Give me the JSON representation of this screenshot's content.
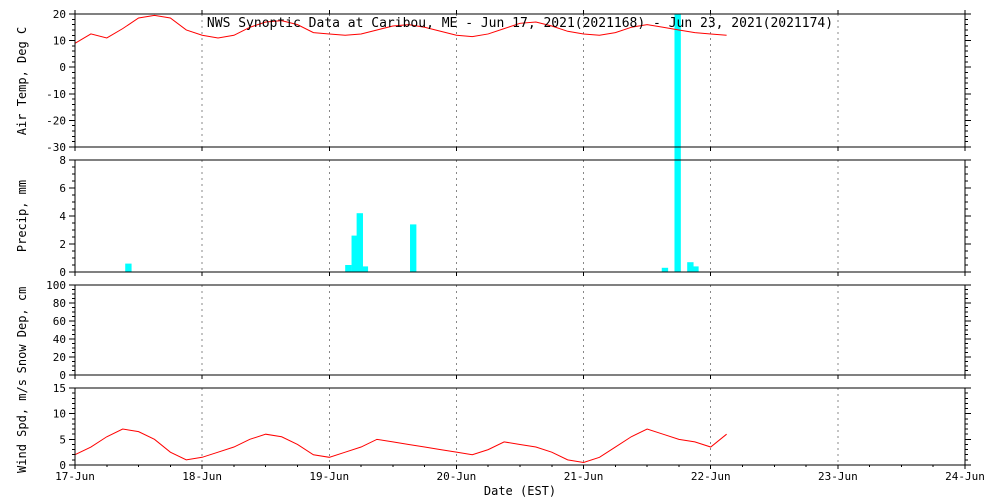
{
  "title": "NWS Synoptic Data at Caribou, ME - Jun 17, 2021(2021168) - Jun 23, 2021(2021174)",
  "x_axis": {
    "label": "Date (EST)",
    "tick_labels": [
      "17-Jun",
      "18-Jun",
      "19-Jun",
      "20-Jun",
      "21-Jun",
      "22-Jun",
      "23-Jun",
      "24-Jun"
    ],
    "range_days": [
      0,
      7
    ]
  },
  "colors": {
    "background": "#ffffff",
    "frame": "#000000",
    "grid": "#888888",
    "line": "#ff0000",
    "bar": "#00ffff"
  },
  "chart_data": [
    {
      "type": "line",
      "ylabel": "Air Temp, Deg C",
      "ylim": [
        -30,
        20
      ],
      "yticks": [
        20,
        10,
        0,
        -10,
        -20,
        -30
      ],
      "minor_step": 2,
      "grid": "vertical-dashed",
      "series": [
        {
          "name": "air-temp",
          "x": [
            0,
            0.125,
            0.25,
            0.375,
            0.5,
            0.625,
            0.75,
            0.875,
            1,
            1.125,
            1.25,
            1.375,
            1.5,
            1.625,
            1.75,
            1.875,
            2,
            2.125,
            2.25,
            2.375,
            2.5,
            2.625,
            2.75,
            2.875,
            3,
            3.125,
            3.25,
            3.375,
            3.5,
            3.625,
            3.75,
            3.875,
            4,
            4.125,
            4.25,
            4.375,
            4.5,
            4.625,
            4.75,
            4.875,
            5,
            5.125
          ],
          "values": [
            9,
            12.5,
            11,
            14.5,
            18.5,
            19.5,
            18.5,
            14,
            12,
            11,
            12,
            15,
            17,
            17.5,
            16,
            13,
            12.5,
            12,
            12.5,
            14,
            15.5,
            16,
            15,
            13.5,
            12,
            11.5,
            12.5,
            14.5,
            16.5,
            17,
            15.5,
            13.5,
            12.5,
            12,
            13,
            15,
            16,
            15,
            14,
            13,
            12.5,
            12
          ]
        }
      ]
    },
    {
      "type": "bar",
      "ylabel": "Precip, mm",
      "ylim": [
        0,
        8
      ],
      "yticks": [
        8,
        6,
        4,
        2,
        0
      ],
      "minor_step": 0.5,
      "grid": "vertical-dashed",
      "bar_width_days": 0.05,
      "bars": {
        "x": [
          0.42,
          2.15,
          2.2,
          2.24,
          2.28,
          2.66,
          4.64,
          4.74,
          4.84,
          4.88
        ],
        "values": [
          0.6,
          0.5,
          2.6,
          4.2,
          0.4,
          3.4,
          0.3,
          18.4,
          0.7,
          0.4
        ]
      }
    },
    {
      "type": "line",
      "ylabel": "Snow Dep, cm",
      "ylim": [
        0,
        100
      ],
      "yticks": [
        100,
        80,
        60,
        40,
        20,
        0
      ],
      "minor_step": 5,
      "grid": "vertical-dashed",
      "series": []
    },
    {
      "type": "line",
      "ylabel": "Wind Spd, m/s",
      "ylim": [
        0,
        15
      ],
      "yticks": [
        15,
        10,
        5,
        0
      ],
      "minor_step": 1,
      "grid": "vertical-dashed",
      "series": [
        {
          "name": "wind-speed",
          "x": [
            0,
            0.125,
            0.25,
            0.375,
            0.5,
            0.625,
            0.75,
            0.875,
            1,
            1.125,
            1.25,
            1.375,
            1.5,
            1.625,
            1.75,
            1.875,
            2,
            2.125,
            2.25,
            2.375,
            2.5,
            2.625,
            2.75,
            2.875,
            3,
            3.125,
            3.25,
            3.375,
            3.5,
            3.625,
            3.75,
            3.875,
            4,
            4.125,
            4.25,
            4.375,
            4.5,
            4.625,
            4.75,
            4.875,
            5,
            5.125
          ],
          "values": [
            2,
            3.5,
            5.5,
            7,
            6.5,
            5,
            2.5,
            1,
            1.5,
            2.5,
            3.5,
            5,
            6,
            5.5,
            4,
            2,
            1.5,
            2.5,
            3.5,
            5,
            4.5,
            4,
            3.5,
            3,
            2.5,
            2,
            3,
            4.5,
            4,
            3.5,
            2.5,
            1,
            0.5,
            1.5,
            3.5,
            5.5,
            7,
            6,
            5,
            4.5,
            3.5,
            6
          ]
        }
      ]
    }
  ]
}
